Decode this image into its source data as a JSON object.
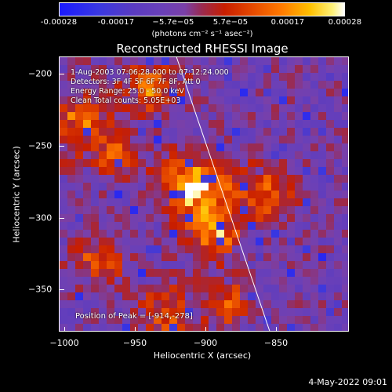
{
  "colorbar": {
    "ticks": [
      "-0.00028",
      "-0.00017",
      "−5.7e−05",
      "5.7e−05",
      "0.00017",
      "0.00028"
    ],
    "unit": "(photons cm⁻² s⁻¹ asec⁻²)"
  },
  "title": "Reconstructed RHESSI Image",
  "info": {
    "line1": "1-Aug-2003 07:06:28.000 to 07:12:24.000",
    "line2": "Detectors: 3F 4F 5F 6F 7F 8F, Att 0",
    "line3": "Energy Range: 25.0 - 50.0 keV",
    "line4": "Clean     Total counts: 5.05E+03"
  },
  "peak_text": "Position of Peak = [-914,-278]",
  "x_axis": {
    "label": "Heliocentric X (arcsec)",
    "ticks": [
      "−1000",
      "−950",
      "−900",
      "−850"
    ]
  },
  "y_axis": {
    "label": "Heliocentric Y (arcsec)",
    "ticks": [
      "−200",
      "−250",
      "−300",
      "−350"
    ]
  },
  "datestamp": "4-May-2022 09:01",
  "chart_data": {
    "type": "heatmap",
    "title": "Reconstructed RHESSI Image",
    "xlabel": "Heliocentric X (arcsec)",
    "ylabel": "Heliocentric Y (arcsec)",
    "xlim": [
      -1000,
      -814
    ],
    "ylim": [
      -380,
      -190
    ],
    "color_range": [
      -0.00028,
      0.00028
    ],
    "peak": [
      -914,
      -278
    ],
    "limb_line": [
      [
        -925,
        -190
      ],
      [
        -865,
        -380
      ]
    ]
  }
}
